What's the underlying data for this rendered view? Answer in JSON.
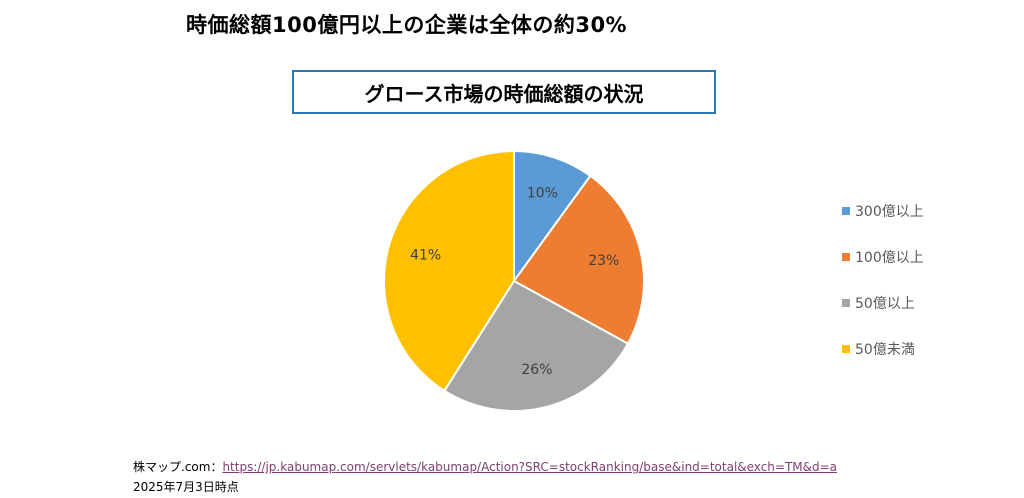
{
  "headline": "時価総額100億円以上の企業は全体の約30%",
  "chart_data": {
    "type": "pie",
    "title": "グロース市場の時価総額の状況",
    "categories": [
      "300億以上",
      "100億以上",
      "50億以上",
      "50億未満"
    ],
    "values": [
      10,
      23,
      26,
      41
    ],
    "value_labels": [
      "10%",
      "23%",
      "26%",
      "41%"
    ],
    "colors": [
      "#5b9bd5",
      "#ed7d31",
      "#a5a5a5",
      "#ffc000"
    ],
    "legend_position": "right"
  },
  "source": {
    "prefix": "株マップ.com：",
    "link_text": "https://jp.kabumap.com/servlets/kabumap/Action?SRC=stockRanking/base&ind=total&exch=TM&d=a"
  },
  "date_note": "2025年7月3日時点"
}
